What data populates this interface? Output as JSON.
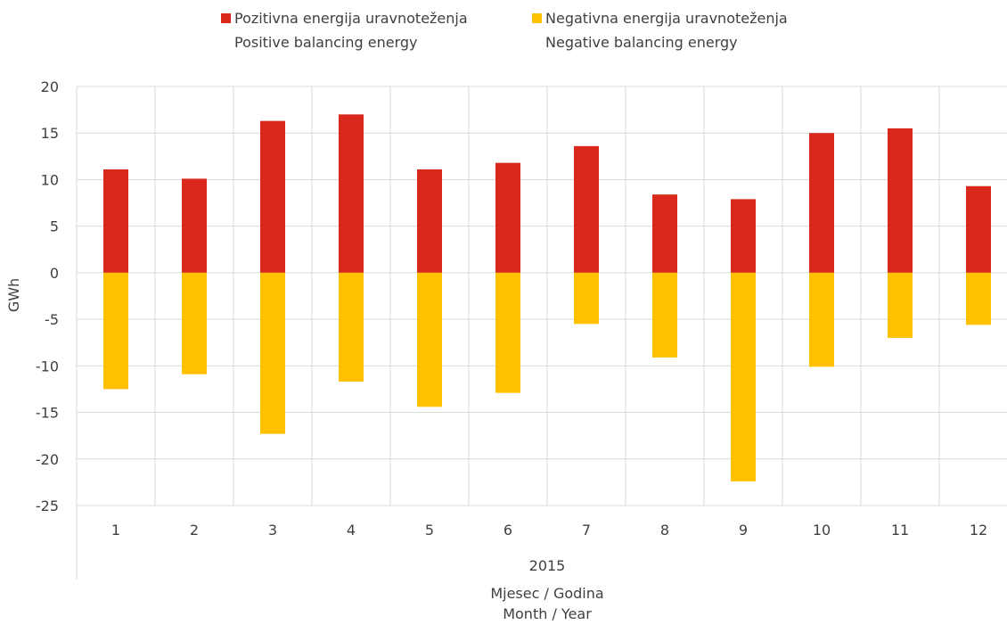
{
  "chart_data": {
    "type": "bar",
    "stacked": true,
    "categories": [
      "1",
      "2",
      "3",
      "4",
      "5",
      "6",
      "7",
      "8",
      "9",
      "10",
      "11",
      "12"
    ],
    "group_label": "2015",
    "series": [
      {
        "name_line1": "Pozitivna energija uravnoteženja",
        "name_line2": "Positive balancing energy",
        "color": "#D9291C",
        "values": [
          11.1,
          10.1,
          16.3,
          17.0,
          11.1,
          11.8,
          13.6,
          8.4,
          7.9,
          15.0,
          15.5,
          9.3
        ]
      },
      {
        "name_line1": "Negativna energija uravnoteženja",
        "name_line2": "Negative balancing energy",
        "color": "#FFC000",
        "values": [
          -12.5,
          -10.9,
          -17.3,
          -11.7,
          -14.4,
          -12.9,
          -5.5,
          -9.1,
          -22.4,
          -10.1,
          -7.0,
          -5.6
        ]
      }
    ],
    "ylabel": "GWh",
    "xlabel_line1": "Mjesec / Godina",
    "xlabel_line2": "Month / Year",
    "ylim": [
      -25,
      20
    ],
    "yticks": [
      20,
      15,
      10,
      5,
      0,
      -5,
      -10,
      -15,
      -20,
      -25
    ],
    "grid": true,
    "legend_position": "top"
  }
}
